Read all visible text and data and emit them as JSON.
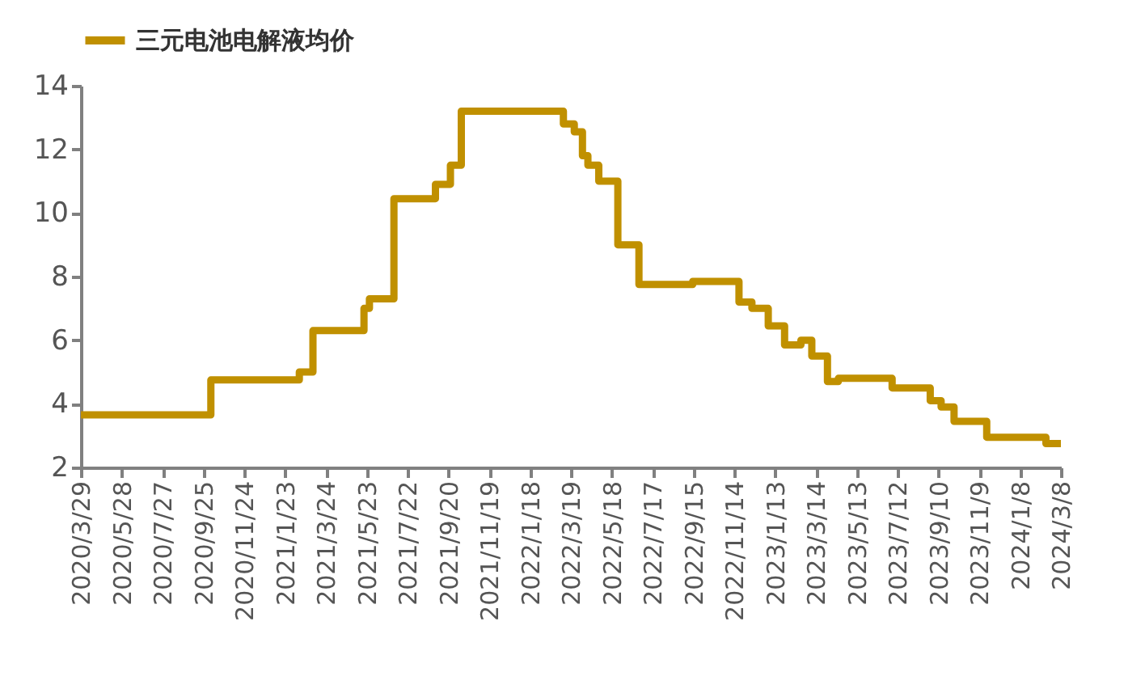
{
  "chart_data": {
    "type": "step",
    "x": [
      "2020-03-29",
      "2020-10-06",
      "2021-02-13",
      "2021-03-05",
      "2021-05-19",
      "2021-05-27",
      "2021-07-02",
      "2021-09-01",
      "2021-09-23",
      "2021-10-09",
      "2022-03-08",
      "2022-03-24",
      "2022-04-05",
      "2022-04-13",
      "2022-04-29",
      "2022-05-27",
      "2022-06-27",
      "2022-09-14",
      "2022-11-21",
      "2022-12-10",
      "2023-01-03",
      "2023-01-27",
      "2023-02-20",
      "2023-03-08",
      "2023-03-31",
      "2023-04-16",
      "2023-05-18",
      "2023-07-04",
      "2023-07-24",
      "2023-08-29",
      "2023-09-14",
      "2023-10-03",
      "2023-10-19",
      "2023-11-20",
      "2023-12-22",
      "2024-02-15",
      "2024-02-25",
      "2024-03-08"
    ],
    "series": [
      {
        "name": "三元电池电解液均价",
        "color": "#c09000",
        "values": [
          3.65,
          4.75,
          5.0,
          6.3,
          7.0,
          7.3,
          10.45,
          10.9,
          11.5,
          13.2,
          12.8,
          12.55,
          11.8,
          11.5,
          11.0,
          9.0,
          7.75,
          7.85,
          7.2,
          7.0,
          6.45,
          5.85,
          6.0,
          5.5,
          4.7,
          4.8,
          4.8,
          4.5,
          4.5,
          4.1,
          3.9,
          3.45,
          3.45,
          2.95,
          2.95,
          2.75,
          2.75,
          2.75
        ]
      }
    ],
    "xlim": [
      "2020-03-29",
      "2024-03-08"
    ],
    "xticks": [
      {
        "value": "2020-03-29",
        "label": "2020/3/29"
      },
      {
        "value": "2020-05-28",
        "label": "2020/5/28"
      },
      {
        "value": "2020-07-27",
        "label": "2020/7/27"
      },
      {
        "value": "2020-09-25",
        "label": "2020/9/25"
      },
      {
        "value": "2020-11-24",
        "label": "2020/11/24"
      },
      {
        "value": "2021-01-23",
        "label": "2021/1/23"
      },
      {
        "value": "2021-03-24",
        "label": "2021/3/24"
      },
      {
        "value": "2021-05-23",
        "label": "2021/5/23"
      },
      {
        "value": "2021-07-22",
        "label": "2021/7/22"
      },
      {
        "value": "2021-09-20",
        "label": "2021/9/20"
      },
      {
        "value": "2021-11-19",
        "label": "2021/11/19"
      },
      {
        "value": "2022-01-18",
        "label": "2022/1/18"
      },
      {
        "value": "2022-03-19",
        "label": "2022/3/19"
      },
      {
        "value": "2022-05-18",
        "label": "2022/5/18"
      },
      {
        "value": "2022-07-17",
        "label": "2022/7/17"
      },
      {
        "value": "2022-09-15",
        "label": "2022/9/15"
      },
      {
        "value": "2022-11-14",
        "label": "2022/11/14"
      },
      {
        "value": "2023-01-13",
        "label": "2023/1/13"
      },
      {
        "value": "2023-03-14",
        "label": "2023/3/14"
      },
      {
        "value": "2023-05-13",
        "label": "2023/5/13"
      },
      {
        "value": "2023-07-12",
        "label": "2023/7/12"
      },
      {
        "value": "2023-09-10",
        "label": "2023/9/10"
      },
      {
        "value": "2023-11-09",
        "label": "2023/11/9"
      },
      {
        "value": "2024-01-08",
        "label": "2024/1/8"
      },
      {
        "value": "2024-03-08",
        "label": "2024/3/8"
      }
    ],
    "ylim": [
      2,
      14
    ],
    "yticks": [
      2,
      4,
      6,
      8,
      10,
      12,
      14
    ],
    "grid": false,
    "legend": "top",
    "marker": "none",
    "line_style": "solid"
  }
}
